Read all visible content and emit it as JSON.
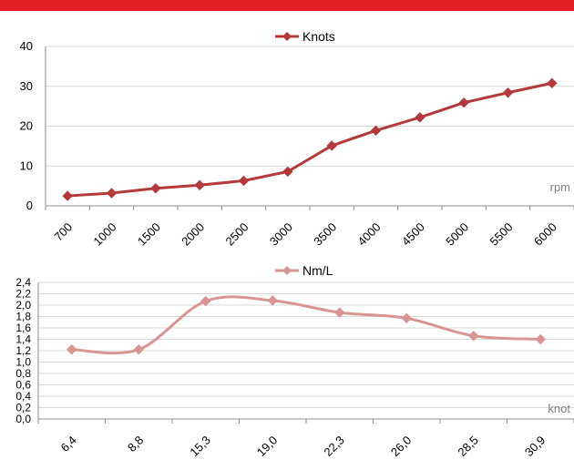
{
  "header": {
    "accent_color": "#e41e26"
  },
  "chart_data": [
    {
      "type": "line",
      "categories": [
        "700",
        "1000",
        "1500",
        "2000",
        "2500",
        "3000",
        "3500",
        "4000",
        "4500",
        "5000",
        "5500",
        "6000"
      ],
      "series": [
        {
          "name": "Knots",
          "values": [
            2.5,
            3.2,
            4.4,
            5.2,
            6.3,
            8.6,
            15.1,
            18.9,
            22.2,
            25.9,
            28.4,
            30.8
          ],
          "color": "#b5393b"
        }
      ],
      "ylim": [
        0,
        40
      ],
      "yticks": [
        "0",
        "10",
        "20",
        "30",
        "40"
      ],
      "xunit": "rpm",
      "legend": "top-center",
      "grid": true,
      "smooth": false
    },
    {
      "type": "line",
      "categories": [
        "6,4",
        "8,8",
        "15,3",
        "19,0",
        "22,3",
        "26,0",
        "28,5",
        "30,9"
      ],
      "series": [
        {
          "name": "Nm/L",
          "values": [
            1.22,
            1.22,
            2.07,
            2.08,
            1.87,
            1.77,
            1.46,
            1.4
          ],
          "color": "#d99593"
        }
      ],
      "ylim": [
        0,
        2.4
      ],
      "yticks": [
        "0,0",
        "0,2",
        "0,4",
        "0,6",
        "0,8",
        "1,0",
        "1,2",
        "1,4",
        "1,6",
        "1,8",
        "2,0",
        "2,2",
        "2,4"
      ],
      "xunit": "knot",
      "legend": "top-center",
      "grid": true,
      "smooth": true
    }
  ]
}
